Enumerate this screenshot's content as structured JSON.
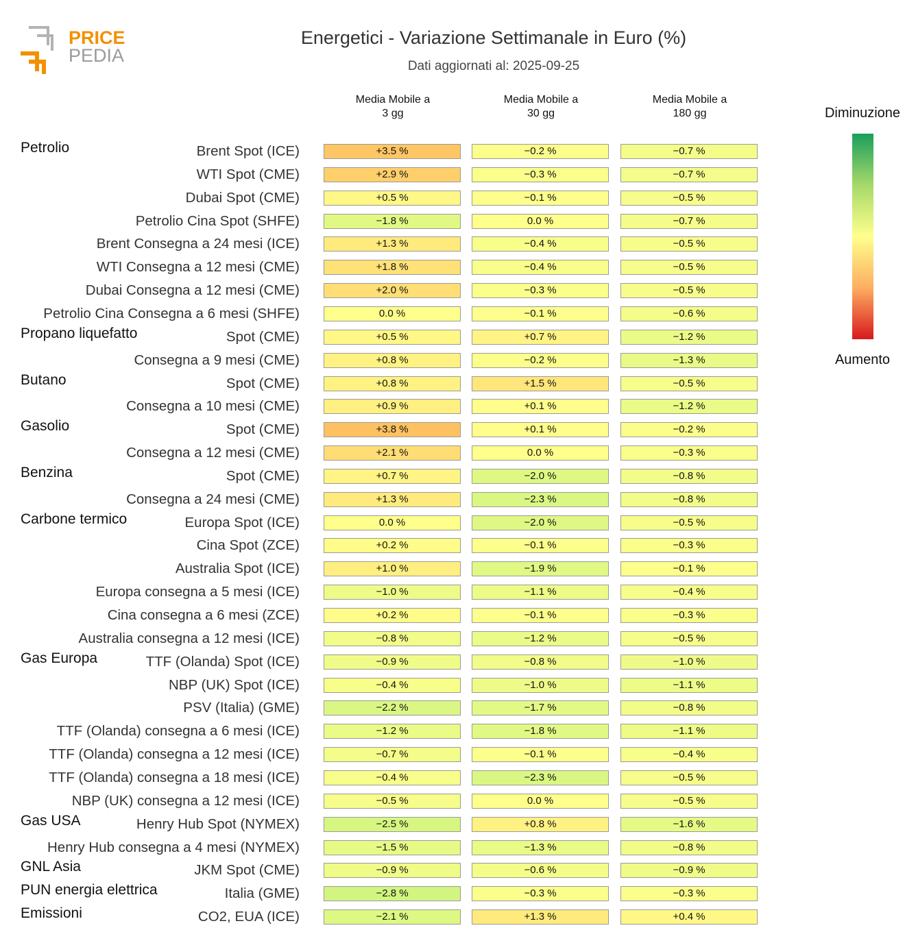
{
  "logo": {
    "word1": "PRICE",
    "word2": "PEDIA"
  },
  "title": "Energetici - Variazione Settimanale in Euro (%)",
  "subtitle": "Dati aggiornati al: 2025-09-25",
  "legend": {
    "top_label": "Diminuzione",
    "bottom_label": "Aumento"
  },
  "colors": {
    "decrease": "#1a9e5c",
    "neutral": "#ffff8c",
    "increase": "#d7191c"
  },
  "chart_data": {
    "type": "heatmap",
    "columns": [
      "Media Mobile a\n3 gg",
      "Media Mobile a\n30 gg",
      "Media Mobile a\n180 gg"
    ],
    "value_format": "signed percent, 1 decimal",
    "rows": [
      {
        "group": "Petrolio",
        "label": "Brent Spot (ICE)",
        "values": [
          3.5,
          -0.2,
          -0.7
        ]
      },
      {
        "group": "",
        "label": "WTI Spot (CME)",
        "values": [
          2.9,
          -0.3,
          -0.7
        ]
      },
      {
        "group": "",
        "label": "Dubai Spot (CME)",
        "values": [
          0.5,
          -0.1,
          -0.5
        ]
      },
      {
        "group": "",
        "label": "Petrolio Cina Spot (SHFE)",
        "values": [
          -1.8,
          0.0,
          -0.7
        ]
      },
      {
        "group": "",
        "label": "Brent Consegna a 24 mesi (ICE)",
        "values": [
          1.3,
          -0.4,
          -0.5
        ]
      },
      {
        "group": "",
        "label": "WTI Consegna a 12 mesi (CME)",
        "values": [
          1.8,
          -0.4,
          -0.5
        ]
      },
      {
        "group": "",
        "label": "Dubai Consegna a 12 mesi (CME)",
        "values": [
          2.0,
          -0.3,
          -0.5
        ]
      },
      {
        "group": "",
        "label": "Petrolio Cina Consegna a 6 mesi (SHFE)",
        "values": [
          0.0,
          -0.1,
          -0.6
        ]
      },
      {
        "group": "Propano liquefatto",
        "label": "Spot (CME)",
        "values": [
          0.5,
          0.7,
          -1.2
        ]
      },
      {
        "group": "",
        "label": "Consegna a 9 mesi (CME)",
        "values": [
          0.8,
          -0.2,
          -1.3
        ]
      },
      {
        "group": "Butano",
        "label": "Spot (CME)",
        "values": [
          0.8,
          1.5,
          -0.5
        ]
      },
      {
        "group": "",
        "label": "Consegna a 10 mesi (CME)",
        "values": [
          0.9,
          0.1,
          -1.2
        ]
      },
      {
        "group": "Gasolio",
        "label": "Spot (CME)",
        "values": [
          3.8,
          0.1,
          -0.2
        ]
      },
      {
        "group": "",
        "label": "Consegna a 12 mesi (CME)",
        "values": [
          2.1,
          0.0,
          -0.3
        ]
      },
      {
        "group": "Benzina",
        "label": "Spot (CME)",
        "values": [
          0.7,
          -2.0,
          -0.8
        ]
      },
      {
        "group": "",
        "label": "Consegna a 24 mesi (CME)",
        "values": [
          1.3,
          -2.3,
          -0.8
        ]
      },
      {
        "group": "Carbone termico",
        "label": "Europa Spot (ICE)",
        "values": [
          0.0,
          -2.0,
          -0.5
        ]
      },
      {
        "group": "",
        "label": "Cina Spot (ZCE)",
        "values": [
          0.2,
          -0.1,
          -0.3
        ]
      },
      {
        "group": "",
        "label": "Australia Spot (ICE)",
        "values": [
          1.0,
          -1.9,
          -0.1
        ]
      },
      {
        "group": "",
        "label": "Europa consegna a 5 mesi (ICE)",
        "values": [
          -1.0,
          -1.1,
          -0.4
        ]
      },
      {
        "group": "",
        "label": "Cina consegna a 6 mesi (ZCE)",
        "values": [
          0.2,
          -0.1,
          -0.3
        ]
      },
      {
        "group": "",
        "label": "Australia consegna a 12 mesi (ICE)",
        "values": [
          -0.8,
          -1.2,
          -0.5
        ]
      },
      {
        "group": "Gas Europa",
        "label": "TTF (Olanda) Spot (ICE)",
        "values": [
          -0.9,
          -0.8,
          -1.0
        ]
      },
      {
        "group": "",
        "label": "NBP (UK) Spot (ICE)",
        "values": [
          -0.4,
          -1.0,
          -1.1
        ]
      },
      {
        "group": "",
        "label": "PSV (Italia) (GME)",
        "values": [
          -2.2,
          -1.7,
          -0.8
        ]
      },
      {
        "group": "",
        "label": "TTF (Olanda) consegna a 6 mesi (ICE)",
        "values": [
          -1.2,
          -1.8,
          -1.1
        ]
      },
      {
        "group": "",
        "label": "TTF (Olanda) consegna a 12 mesi (ICE)",
        "values": [
          -0.7,
          -0.1,
          -0.4
        ]
      },
      {
        "group": "",
        "label": "TTF (Olanda) consegna a 18 mesi (ICE)",
        "values": [
          -0.4,
          -2.3,
          -0.5
        ]
      },
      {
        "group": "",
        "label": "NBP (UK) consegna a 12 mesi (ICE)",
        "values": [
          -0.5,
          0.0,
          -0.5
        ]
      },
      {
        "group": "Gas USA",
        "label": "Henry Hub Spot (NYMEX)",
        "values": [
          -2.5,
          0.8,
          -1.6
        ]
      },
      {
        "group": "",
        "label": "Henry Hub consegna a 4 mesi (NYMEX)",
        "values": [
          -1.5,
          -1.3,
          -0.8
        ]
      },
      {
        "group": "GNL Asia",
        "label": "JKM Spot (CME)",
        "values": [
          -0.9,
          -0.6,
          -0.9
        ]
      },
      {
        "group": "PUN energia elettrica",
        "label": "Italia (GME)",
        "values": [
          -2.8,
          -0.3,
          -0.3
        ]
      },
      {
        "group": "Emissioni",
        "label": "CO2, EUA (ICE)",
        "values": [
          -2.1,
          1.3,
          0.4
        ]
      }
    ]
  }
}
